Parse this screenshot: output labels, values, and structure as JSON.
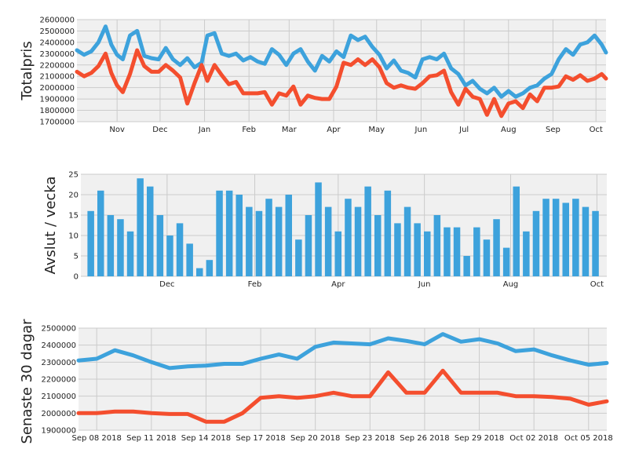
{
  "colors": {
    "blue": "#3da2dc",
    "red": "#f44e2e",
    "panel": "#f0f0f0",
    "grid": "#cbcbcb"
  },
  "chart_data": [
    {
      "type": "line",
      "ylabel": "Totalpris",
      "ylim": [
        1700000,
        2600000
      ],
      "yticks": [
        1700000,
        1800000,
        1900000,
        2000000,
        2100000,
        2200000,
        2300000,
        2400000,
        2500000,
        2600000
      ],
      "ytick_labels": [
        "1700000",
        "1800000",
        "1900000",
        "2000000",
        "2100000",
        "2200000",
        "2300000",
        "2400000",
        "2500000",
        "2600000"
      ],
      "xlim": [
        "2017-10-04",
        "2018-10-08"
      ],
      "xticks": [
        "2017-11-01",
        "2017-12-01",
        "2018-01-01",
        "2018-02-01",
        "2018-03-01",
        "2018-04-01",
        "2018-05-01",
        "2018-06-01",
        "2018-07-01",
        "2018-08-01",
        "2018-09-01",
        "2018-10-01"
      ],
      "xtick_labels": [
        "Nov",
        "Dec",
        "Jan",
        "Feb",
        "Mar",
        "Apr",
        "May",
        "Jun",
        "Jul",
        "Aug",
        "Sep",
        "Oct"
      ],
      "grid": true,
      "series": [
        {
          "color": "blue",
          "x": [
            "2017-10-04",
            "2017-10-09",
            "2017-10-14",
            "2017-10-19",
            "2017-10-24",
            "2017-10-28",
            "2017-11-01",
            "2017-11-05",
            "2017-11-10",
            "2017-11-15",
            "2017-11-20",
            "2017-11-25",
            "2017-11-30",
            "2017-12-05",
            "2017-12-10",
            "2017-12-15",
            "2017-12-20",
            "2017-12-25",
            "2017-12-30",
            "2018-01-03",
            "2018-01-08",
            "2018-01-13",
            "2018-01-18",
            "2018-01-23",
            "2018-01-28",
            "2018-02-02",
            "2018-02-07",
            "2018-02-12",
            "2018-02-17",
            "2018-02-22",
            "2018-02-27",
            "2018-03-04",
            "2018-03-09",
            "2018-03-14",
            "2018-03-19",
            "2018-03-24",
            "2018-03-29",
            "2018-04-03",
            "2018-04-08",
            "2018-04-13",
            "2018-04-18",
            "2018-04-23",
            "2018-04-28",
            "2018-05-03",
            "2018-05-08",
            "2018-05-13",
            "2018-05-18",
            "2018-05-23",
            "2018-05-28",
            "2018-06-02",
            "2018-06-07",
            "2018-06-12",
            "2018-06-17",
            "2018-06-22",
            "2018-06-27",
            "2018-07-02",
            "2018-07-07",
            "2018-07-12",
            "2018-07-17",
            "2018-07-22",
            "2018-07-27",
            "2018-08-01",
            "2018-08-06",
            "2018-08-11",
            "2018-08-16",
            "2018-08-21",
            "2018-08-26",
            "2018-08-31",
            "2018-09-05",
            "2018-09-10",
            "2018-09-15",
            "2018-09-20",
            "2018-09-25",
            "2018-09-30",
            "2018-10-05",
            "2018-10-08"
          ],
          "y": [
            2330000,
            2290000,
            2320000,
            2400000,
            2540000,
            2380000,
            2290000,
            2250000,
            2460000,
            2500000,
            2280000,
            2260000,
            2250000,
            2350000,
            2250000,
            2200000,
            2260000,
            2180000,
            2220000,
            2460000,
            2480000,
            2300000,
            2280000,
            2300000,
            2240000,
            2270000,
            2230000,
            2210000,
            2340000,
            2290000,
            2200000,
            2300000,
            2340000,
            2230000,
            2150000,
            2280000,
            2230000,
            2320000,
            2270000,
            2460000,
            2420000,
            2450000,
            2360000,
            2290000,
            2170000,
            2240000,
            2150000,
            2130000,
            2090000,
            2250000,
            2270000,
            2250000,
            2300000,
            2170000,
            2120000,
            2020000,
            2060000,
            1990000,
            1950000,
            2000000,
            1920000,
            1970000,
            1920000,
            1950000,
            2000000,
            2020000,
            2080000,
            2120000,
            2250000,
            2340000,
            2290000,
            2380000,
            2400000,
            2460000,
            2380000,
            2310000
          ]
        },
        {
          "color": "red",
          "x": [
            "2017-10-04",
            "2017-10-09",
            "2017-10-14",
            "2017-10-19",
            "2017-10-24",
            "2017-10-28",
            "2017-11-01",
            "2017-11-05",
            "2017-11-10",
            "2017-11-15",
            "2017-11-20",
            "2017-11-25",
            "2017-11-30",
            "2017-12-05",
            "2017-12-10",
            "2017-12-15",
            "2017-12-20",
            "2017-12-25",
            "2017-12-30",
            "2018-01-03",
            "2018-01-08",
            "2018-01-13",
            "2018-01-18",
            "2018-01-23",
            "2018-01-28",
            "2018-02-02",
            "2018-02-07",
            "2018-02-12",
            "2018-02-17",
            "2018-02-22",
            "2018-02-27",
            "2018-03-04",
            "2018-03-09",
            "2018-03-14",
            "2018-03-19",
            "2018-03-24",
            "2018-03-29",
            "2018-04-03",
            "2018-04-08",
            "2018-04-13",
            "2018-04-18",
            "2018-04-23",
            "2018-04-28",
            "2018-05-03",
            "2018-05-08",
            "2018-05-13",
            "2018-05-18",
            "2018-05-23",
            "2018-05-28",
            "2018-06-02",
            "2018-06-07",
            "2018-06-12",
            "2018-06-17",
            "2018-06-22",
            "2018-06-27",
            "2018-07-02",
            "2018-07-07",
            "2018-07-12",
            "2018-07-17",
            "2018-07-22",
            "2018-07-27",
            "2018-08-01",
            "2018-08-06",
            "2018-08-11",
            "2018-08-16",
            "2018-08-21",
            "2018-08-26",
            "2018-08-31",
            "2018-09-05",
            "2018-09-10",
            "2018-09-15",
            "2018-09-20",
            "2018-09-25",
            "2018-09-30",
            "2018-10-05",
            "2018-10-08"
          ],
          "y": [
            2140000,
            2100000,
            2130000,
            2190000,
            2300000,
            2130000,
            2020000,
            1960000,
            2120000,
            2330000,
            2190000,
            2140000,
            2140000,
            2200000,
            2150000,
            2090000,
            1860000,
            2040000,
            2200000,
            2060000,
            2200000,
            2110000,
            2030000,
            2050000,
            1950000,
            1950000,
            1950000,
            1960000,
            1850000,
            1950000,
            1930000,
            2010000,
            1850000,
            1930000,
            1910000,
            1900000,
            1900000,
            2010000,
            2220000,
            2200000,
            2250000,
            2200000,
            2250000,
            2180000,
            2040000,
            2000000,
            2020000,
            2000000,
            1990000,
            2040000,
            2100000,
            2110000,
            2150000,
            1960000,
            1850000,
            1990000,
            1920000,
            1900000,
            1760000,
            1900000,
            1750000,
            1860000,
            1880000,
            1820000,
            1940000,
            1880000,
            2000000,
            2000000,
            2010000,
            2100000,
            2070000,
            2110000,
            2060000,
            2080000,
            2120000,
            2080000
          ]
        }
      ]
    },
    {
      "type": "bar",
      "ylabel": "Avslut / vecka",
      "ylim": [
        0,
        25
      ],
      "yticks": [
        0,
        5,
        10,
        15,
        20,
        25
      ],
      "ytick_labels": [
        "0",
        "5",
        "10",
        "15",
        "20",
        "25"
      ],
      "xlim": [
        "2017-10-01",
        "2018-10-08"
      ],
      "xticks": [
        "2017-12-01",
        "2018-02-01",
        "2018-04-01",
        "2018-06-01",
        "2018-08-01",
        "2018-10-01"
      ],
      "xtick_labels": [
        "Dec",
        "Feb",
        "Apr",
        "Jun",
        "Aug",
        "Oct"
      ],
      "grid": true,
      "color": "blue",
      "x": [
        "2017-10-08",
        "2017-10-15",
        "2017-10-22",
        "2017-10-29",
        "2017-11-05",
        "2017-11-12",
        "2017-11-19",
        "2017-11-26",
        "2017-12-03",
        "2017-12-10",
        "2017-12-17",
        "2017-12-24",
        "2017-12-31",
        "2018-01-07",
        "2018-01-14",
        "2018-01-21",
        "2018-01-28",
        "2018-02-04",
        "2018-02-11",
        "2018-02-18",
        "2018-02-25",
        "2018-03-04",
        "2018-03-11",
        "2018-03-18",
        "2018-03-25",
        "2018-04-01",
        "2018-04-08",
        "2018-04-15",
        "2018-04-22",
        "2018-04-29",
        "2018-05-06",
        "2018-05-13",
        "2018-05-20",
        "2018-05-27",
        "2018-06-03",
        "2018-06-10",
        "2018-06-17",
        "2018-06-24",
        "2018-07-01",
        "2018-07-08",
        "2018-07-15",
        "2018-07-22",
        "2018-07-29",
        "2018-08-05",
        "2018-08-12",
        "2018-08-19",
        "2018-08-26",
        "2018-09-02",
        "2018-09-09",
        "2018-09-16",
        "2018-09-23",
        "2018-09-30"
      ],
      "values": [
        16,
        21,
        15,
        14,
        11,
        24,
        22,
        15,
        10,
        13,
        8,
        2,
        4,
        21,
        21,
        20,
        17,
        16,
        19,
        17,
        20,
        9,
        15,
        23,
        17,
        11,
        19,
        17,
        22,
        15,
        21,
        13,
        17,
        13,
        11,
        15,
        12,
        12,
        5,
        12,
        9,
        14,
        7,
        22,
        11,
        16,
        19,
        19,
        18,
        19,
        17,
        16
      ]
    },
    {
      "type": "line",
      "ylabel": "Senaste 30 dagar",
      "ylim": [
        1900000,
        2500000
      ],
      "yticks": [
        1900000,
        2000000,
        2100000,
        2200000,
        2300000,
        2400000,
        2500000
      ],
      "ytick_labels": [
        "1900000",
        "2000000",
        "2100000",
        "2200000",
        "2300000",
        "2400000",
        "2500000"
      ],
      "xlim": [
        "2018-09-07",
        "2018-10-06"
      ],
      "xticks": [
        "2018-09-08",
        "2018-09-11",
        "2018-09-14",
        "2018-09-17",
        "2018-09-20",
        "2018-09-23",
        "2018-09-26",
        "2018-09-29",
        "2018-10-02",
        "2018-10-05"
      ],
      "xtick_labels": [
        "Sep 08 2018",
        "Sep 11 2018",
        "Sep 14 2018",
        "Sep 17 2018",
        "Sep 20 2018",
        "Sep 23 2018",
        "Sep 26 2018",
        "Sep 29 2018",
        "Oct 02 2018",
        "Oct 05 2018"
      ],
      "grid": true,
      "series": [
        {
          "color": "blue",
          "x": [
            "2018-09-07",
            "2018-09-08",
            "2018-09-09",
            "2018-09-10",
            "2018-09-11",
            "2018-09-12",
            "2018-09-13",
            "2018-09-14",
            "2018-09-15",
            "2018-09-16",
            "2018-09-17",
            "2018-09-18",
            "2018-09-19",
            "2018-09-20",
            "2018-09-21",
            "2018-09-22",
            "2018-09-23",
            "2018-09-24",
            "2018-09-25",
            "2018-09-26",
            "2018-09-27",
            "2018-09-28",
            "2018-09-29",
            "2018-09-30",
            "2018-10-01",
            "2018-10-02",
            "2018-10-03",
            "2018-10-04",
            "2018-10-05",
            "2018-10-06"
          ],
          "y": [
            2310000,
            2320000,
            2370000,
            2340000,
            2300000,
            2265000,
            2275000,
            2280000,
            2290000,
            2290000,
            2320000,
            2345000,
            2320000,
            2390000,
            2415000,
            2410000,
            2405000,
            2440000,
            2425000,
            2405000,
            2465000,
            2420000,
            2435000,
            2410000,
            2365000,
            2375000,
            2340000,
            2310000,
            2285000,
            2295000
          ]
        },
        {
          "color": "red",
          "x": [
            "2018-09-07",
            "2018-09-08",
            "2018-09-09",
            "2018-09-10",
            "2018-09-11",
            "2018-09-12",
            "2018-09-13",
            "2018-09-14",
            "2018-09-15",
            "2018-09-16",
            "2018-09-17",
            "2018-09-18",
            "2018-09-19",
            "2018-09-20",
            "2018-09-21",
            "2018-09-22",
            "2018-09-23",
            "2018-09-24",
            "2018-09-25",
            "2018-09-26",
            "2018-09-27",
            "2018-09-28",
            "2018-09-29",
            "2018-09-30",
            "2018-10-01",
            "2018-10-02",
            "2018-10-03",
            "2018-10-04",
            "2018-10-05",
            "2018-10-06"
          ],
          "y": [
            2000000,
            2000000,
            2010000,
            2010000,
            2000000,
            1995000,
            1995000,
            1950000,
            1950000,
            2000000,
            2090000,
            2100000,
            2090000,
            2100000,
            2120000,
            2100000,
            2100000,
            2240000,
            2120000,
            2120000,
            2250000,
            2120000,
            2120000,
            2120000,
            2100000,
            2100000,
            2095000,
            2085000,
            2050000,
            2070000
          ]
        }
      ]
    }
  ]
}
